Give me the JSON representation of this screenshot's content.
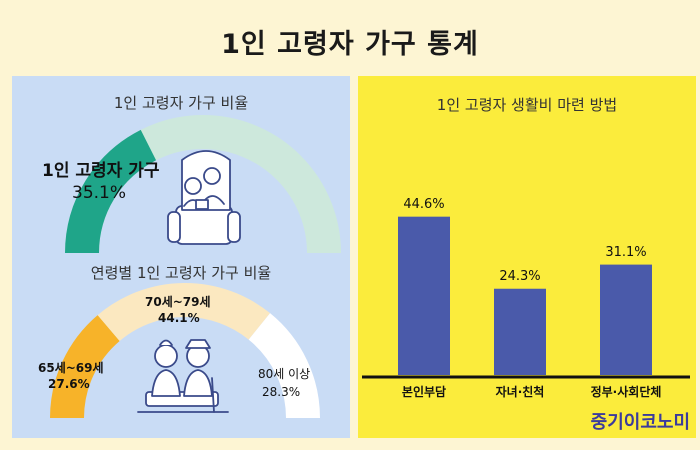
{
  "title": "1인 고령자 가구 통계",
  "brand": "중기이코노미",
  "colors": {
    "teal": "#1fa589",
    "lightgreen": "#cde8dc",
    "orange": "#f7b329",
    "cream": "#fbe8c0",
    "white": "#ffffff",
    "bar": "#4a5aaa"
  },
  "chart_data": [
    {
      "type": "pie",
      "title": "1인 고령자 가구 비율",
      "label": "1인 고령자 가구",
      "value_label": "35.1%",
      "value": 35.1
    },
    {
      "type": "pie",
      "title": "연령별 1인 고령자  가구 비율",
      "categories": [
        "65세~69세",
        "70세~79세",
        "80세 이상"
      ],
      "values": [
        27.6,
        44.1,
        28.3
      ],
      "value_labels": [
        "27.6%",
        "44.1%",
        "28.3%"
      ]
    },
    {
      "type": "bar",
      "title": "1인 고령자 생활비 마련 방법",
      "categories": [
        "본인부담",
        "자녀·친척",
        "정부·사회단체"
      ],
      "values": [
        44.6,
        24.3,
        31.1
      ],
      "value_labels": [
        "44.6%",
        "24.3%",
        "31.1%"
      ]
    }
  ]
}
